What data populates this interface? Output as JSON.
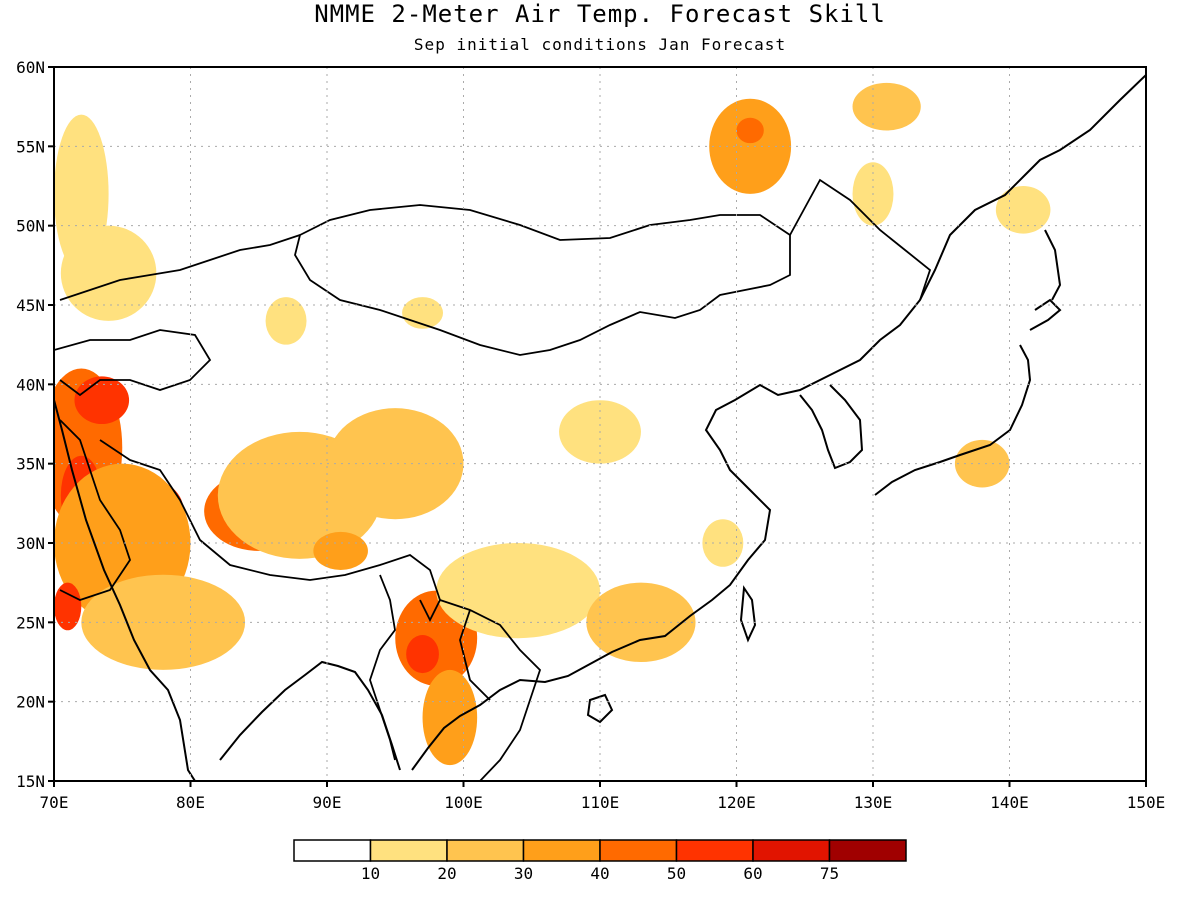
{
  "title": "NMME 2-Meter Air Temp. Forecast Skill",
  "subtitle": "Sep initial conditions  Jan Forecast",
  "map": {
    "lon_range": [
      70,
      150
    ],
    "lat_range": [
      15,
      60
    ],
    "lon_ticks": [
      "70E",
      "80E",
      "90E",
      "100E",
      "110E",
      "120E",
      "130E",
      "140E",
      "150E"
    ],
    "lat_ticks": [
      "60N",
      "55N",
      "50N",
      "45N",
      "40N",
      "35N",
      "30N",
      "25N",
      "20N",
      "15N"
    ],
    "grid": "dotted"
  },
  "colorbar": {
    "colors": [
      "#ffffff",
      "#ffe17f",
      "#ffc44f",
      "#ff9f1a",
      "#ff6a00",
      "#ff3300",
      "#e11400",
      "#a00000"
    ],
    "labels": [
      "10",
      "20",
      "30",
      "40",
      "50",
      "60",
      "75"
    ]
  },
  "chart_data": {
    "type": "heatmap",
    "title": "NMME 2-Meter Air Temp. Forecast Skill",
    "subtitle": "Sep initial conditions  Jan Forecast",
    "x_range": [
      70,
      150
    ],
    "y_range": [
      15,
      60
    ],
    "levels": [
      10,
      20,
      30,
      40,
      50,
      60,
      75
    ],
    "grid": true,
    "regions": [
      {
        "lon": 72,
        "lat": 36,
        "rx": 3,
        "ry": 5,
        "value": 45
      },
      {
        "lon": 73.5,
        "lat": 39,
        "rx": 2,
        "ry": 1.5,
        "value": 55
      },
      {
        "lon": 77,
        "lat": 32,
        "rx": 2.5,
        "ry": 2,
        "value": 55
      },
      {
        "lon": 72,
        "lat": 33,
        "rx": 1.5,
        "ry": 2.5,
        "value": 55
      },
      {
        "lon": 75,
        "lat": 30,
        "rx": 5,
        "ry": 5,
        "value": 30
      },
      {
        "lon": 78,
        "lat": 25,
        "rx": 6,
        "ry": 3,
        "value": 22
      },
      {
        "lon": 71,
        "lat": 26,
        "rx": 1,
        "ry": 1.5,
        "value": 55
      },
      {
        "lon": 74,
        "lat": 47,
        "rx": 3.5,
        "ry": 3,
        "value": 15
      },
      {
        "lon": 72,
        "lat": 52,
        "rx": 2,
        "ry": 5,
        "value": 12
      },
      {
        "lon": 85,
        "lat": 32,
        "rx": 4,
        "ry": 2.5,
        "value": 40
      },
      {
        "lon": 84,
        "lat": 32,
        "rx": 1.5,
        "ry": 1.2,
        "value": 55
      },
      {
        "lon": 88,
        "lat": 33,
        "rx": 6,
        "ry": 4,
        "value": 25
      },
      {
        "lon": 95,
        "lat": 35,
        "rx": 5,
        "ry": 3.5,
        "value": 25
      },
      {
        "lon": 91,
        "lat": 29.5,
        "rx": 2,
        "ry": 1.2,
        "value": 35
      },
      {
        "lon": 98,
        "lat": 24,
        "rx": 3,
        "ry": 3,
        "value": 40
      },
      {
        "lon": 97,
        "lat": 23,
        "rx": 1.2,
        "ry": 1.2,
        "value": 55
      },
      {
        "lon": 99,
        "lat": 19,
        "rx": 2,
        "ry": 3,
        "value": 30
      },
      {
        "lon": 104,
        "lat": 27,
        "rx": 6,
        "ry": 3,
        "value": 15
      },
      {
        "lon": 110,
        "lat": 37,
        "rx": 3,
        "ry": 2,
        "value": 15
      },
      {
        "lon": 113,
        "lat": 25,
        "rx": 4,
        "ry": 2.5,
        "value": 20
      },
      {
        "lon": 121,
        "lat": 55,
        "rx": 3,
        "ry": 3,
        "value": 30
      },
      {
        "lon": 121,
        "lat": 56,
        "rx": 1,
        "ry": 0.8,
        "value": 42
      },
      {
        "lon": 131,
        "lat": 57.5,
        "rx": 2.5,
        "ry": 1.5,
        "value": 25
      },
      {
        "lon": 130,
        "lat": 52,
        "rx": 1.5,
        "ry": 2,
        "value": 12
      },
      {
        "lon": 138,
        "lat": 35,
        "rx": 2,
        "ry": 1.5,
        "value": 25
      },
      {
        "lon": 87,
        "lat": 44,
        "rx": 1.5,
        "ry": 1.5,
        "value": 15
      },
      {
        "lon": 97,
        "lat": 44.5,
        "rx": 1.5,
        "ry": 1,
        "value": 15
      },
      {
        "lon": 119,
        "lat": 30,
        "rx": 1.5,
        "ry": 1.5,
        "value": 15
      },
      {
        "lon": 141,
        "lat": 51,
        "rx": 2,
        "ry": 1.5,
        "value": 12
      }
    ]
  }
}
